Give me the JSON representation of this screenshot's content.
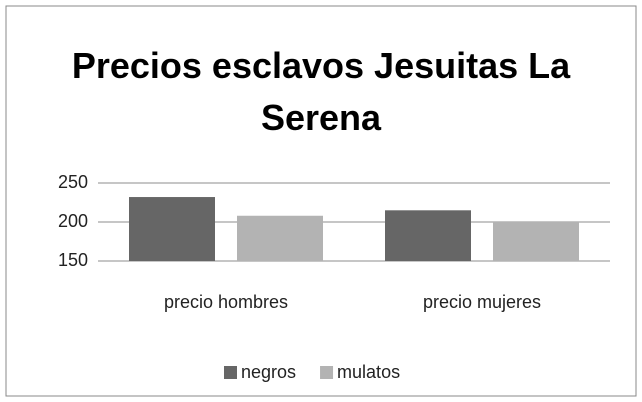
{
  "chart_data": {
    "type": "bar",
    "title": "Precios esclavos Jesuitas La Serena",
    "categories": [
      "precio hombres",
      "precio mujeres"
    ],
    "series": [
      {
        "name": "negros",
        "color": "#666666",
        "values": [
          232,
          215
        ]
      },
      {
        "name": "mulatos",
        "color": "#b3b3b3",
        "values": [
          208,
          200
        ]
      }
    ],
    "ylim": [
      150,
      250
    ],
    "yticks": [
      150,
      200,
      250
    ],
    "grid": true,
    "legend": "bottom"
  }
}
